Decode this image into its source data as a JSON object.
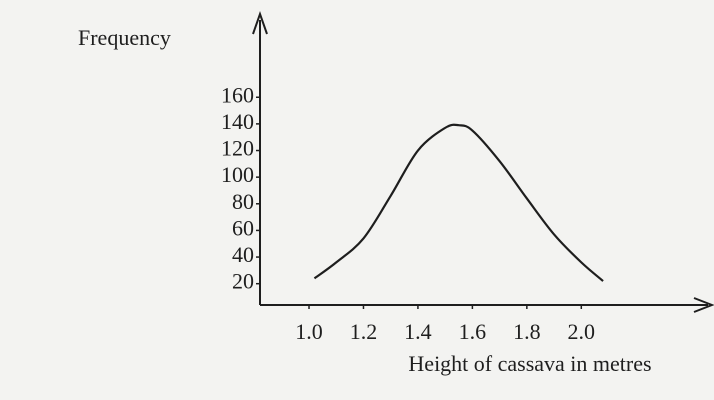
{
  "chart_data": {
    "type": "line",
    "y_label": "Frequency",
    "x_label": "Height of cassava in metres",
    "x": [
      1.02,
      1.1,
      1.2,
      1.3,
      1.4,
      1.5,
      1.55,
      1.6,
      1.7,
      1.8,
      1.9,
      2.0,
      2.08
    ],
    "values": [
      24,
      36,
      54,
      86,
      120,
      137,
      139,
      135,
      112,
      84,
      57,
      36,
      22
    ],
    "color": "#1e1e1e",
    "xlim": [
      0.82,
      2.48
    ],
    "xticks": [
      {
        "value": 1.0,
        "label": "1.0"
      },
      1.2,
      1.4,
      1.6,
      1.8,
      {
        "value": 2.0,
        "label": "2.0"
      }
    ],
    "ylim": [
      4,
      218
    ],
    "yticks": [
      20,
      40,
      60,
      80,
      100,
      120,
      140,
      160
    ]
  }
}
